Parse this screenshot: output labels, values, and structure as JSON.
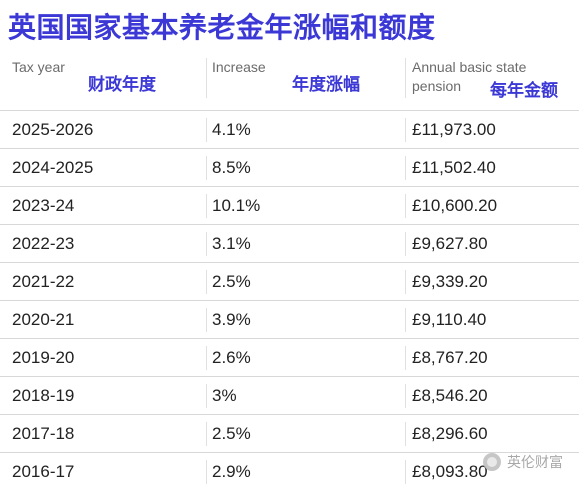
{
  "title": "英国国家基本养老金年涨幅和额度",
  "headers": {
    "tax_year": {
      "en": "Tax year",
      "cn": "财政年度"
    },
    "increase": {
      "en": "Increase",
      "cn": "年度涨幅"
    },
    "pension": {
      "en_line1": "Annual basic state",
      "en_line2": "pension",
      "cn": "每年金额"
    }
  },
  "rows": [
    {
      "year": "2025-2026",
      "increase": "4.1%",
      "pension": "£11,973.00"
    },
    {
      "year": "2024-2025",
      "increase": "8.5%",
      "pension": "£11,502.40"
    },
    {
      "year": "2023-24",
      "increase": "10.1%",
      "pension": "£10,600.20"
    },
    {
      "year": "2022-23",
      "increase": "3.1%",
      "pension": "£9,627.80"
    },
    {
      "year": "2021-22",
      "increase": "2.5%",
      "pension": "£9,339.20"
    },
    {
      "year": "2020-21",
      "increase": "3.9%",
      "pension": "£9,110.40"
    },
    {
      "year": "2019-20",
      "increase": "2.6%",
      "pension": "£8,767.20"
    },
    {
      "year": "2018-19",
      "increase": "3%",
      "pension": "£8,546.20"
    },
    {
      "year": "2017-18",
      "increase": "2.5%",
      "pension": "£8,296.60"
    },
    {
      "year": "2016-17",
      "increase": "2.9%",
      "pension": "£8,093.80"
    }
  ],
  "watermark": "英伦财富",
  "colors": {
    "accent": "#3b38d6",
    "divider": "#d8d8d8"
  }
}
